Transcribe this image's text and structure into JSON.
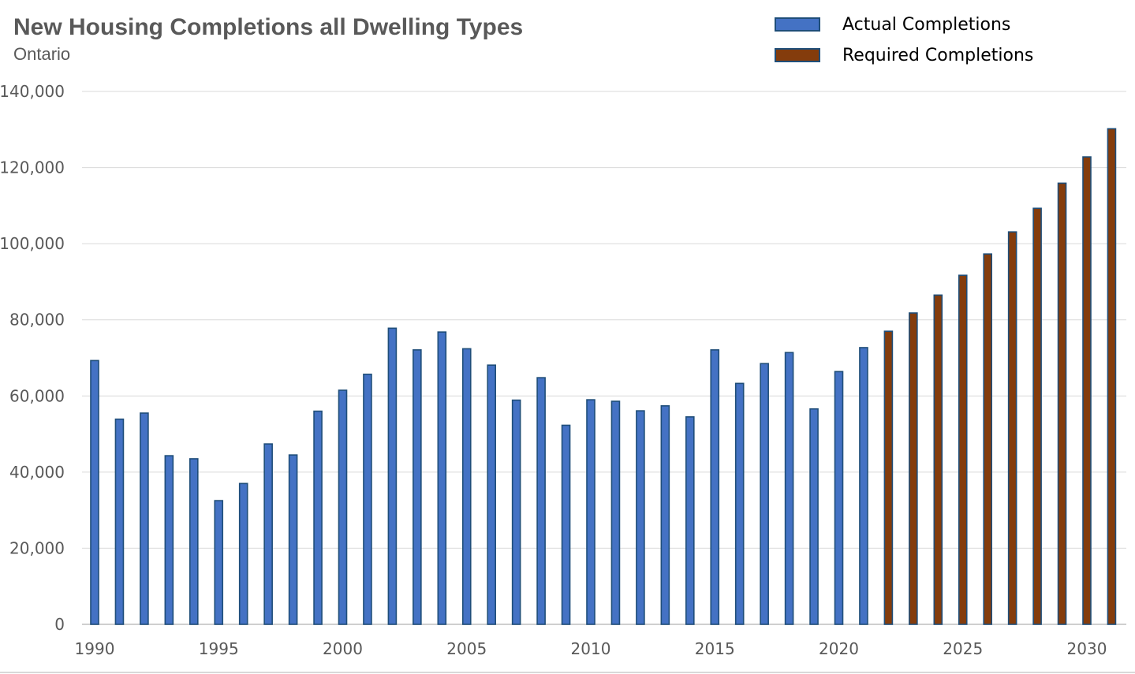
{
  "chart_data": {
    "type": "bar",
    "title": "New Housing Completions all Dwelling Types",
    "subtitle": "Ontario",
    "xlabel": "",
    "ylabel": "",
    "ylim": [
      0,
      140000
    ],
    "yticks": [
      "0",
      "20,000",
      "40,000",
      "60,000",
      "80,000",
      "100,000",
      "120,000",
      "140,000"
    ],
    "xtick_labels": [
      "1990",
      "1995",
      "2000",
      "2005",
      "2010",
      "2015",
      "2020",
      "2025",
      "2030"
    ],
    "grid": true,
    "legend_position": "top-right",
    "categories": [
      "1990",
      "1991",
      "1992",
      "1993",
      "1994",
      "1995",
      "1996",
      "1997",
      "1998",
      "1999",
      "2000",
      "2001",
      "2002",
      "2003",
      "2004",
      "2005",
      "2006",
      "2007",
      "2008",
      "2009",
      "2010",
      "2011",
      "2012",
      "2013",
      "2014",
      "2015",
      "2016",
      "2017",
      "2018",
      "2019",
      "2020",
      "2021",
      "2022",
      "2023",
      "2024",
      "2025",
      "2026",
      "2027",
      "2028",
      "2029",
      "2030",
      "2031"
    ],
    "series": [
      {
        "name": "Actual Completions",
        "color": "#4472C4",
        "values": [
          69300,
          53900,
          55500,
          44300,
          43500,
          32500,
          37000,
          47400,
          44500,
          56000,
          61500,
          65700,
          77800,
          72100,
          76800,
          72400,
          68100,
          58900,
          64800,
          52300,
          59000,
          58600,
          56100,
          57400,
          54500,
          72100,
          63300,
          68500,
          71400,
          56600,
          66400,
          72700,
          null,
          null,
          null,
          null,
          null,
          null,
          null,
          null,
          null,
          null
        ]
      },
      {
        "name": "Required Completions",
        "color": "#843C0C",
        "values": [
          null,
          null,
          null,
          null,
          null,
          null,
          null,
          null,
          null,
          null,
          null,
          null,
          null,
          null,
          null,
          null,
          null,
          null,
          null,
          null,
          null,
          null,
          null,
          null,
          null,
          null,
          null,
          null,
          null,
          null,
          null,
          null,
          77000,
          81800,
          86500,
          91700,
          97300,
          103100,
          109300,
          115900,
          122800,
          130200
        ]
      }
    ]
  }
}
